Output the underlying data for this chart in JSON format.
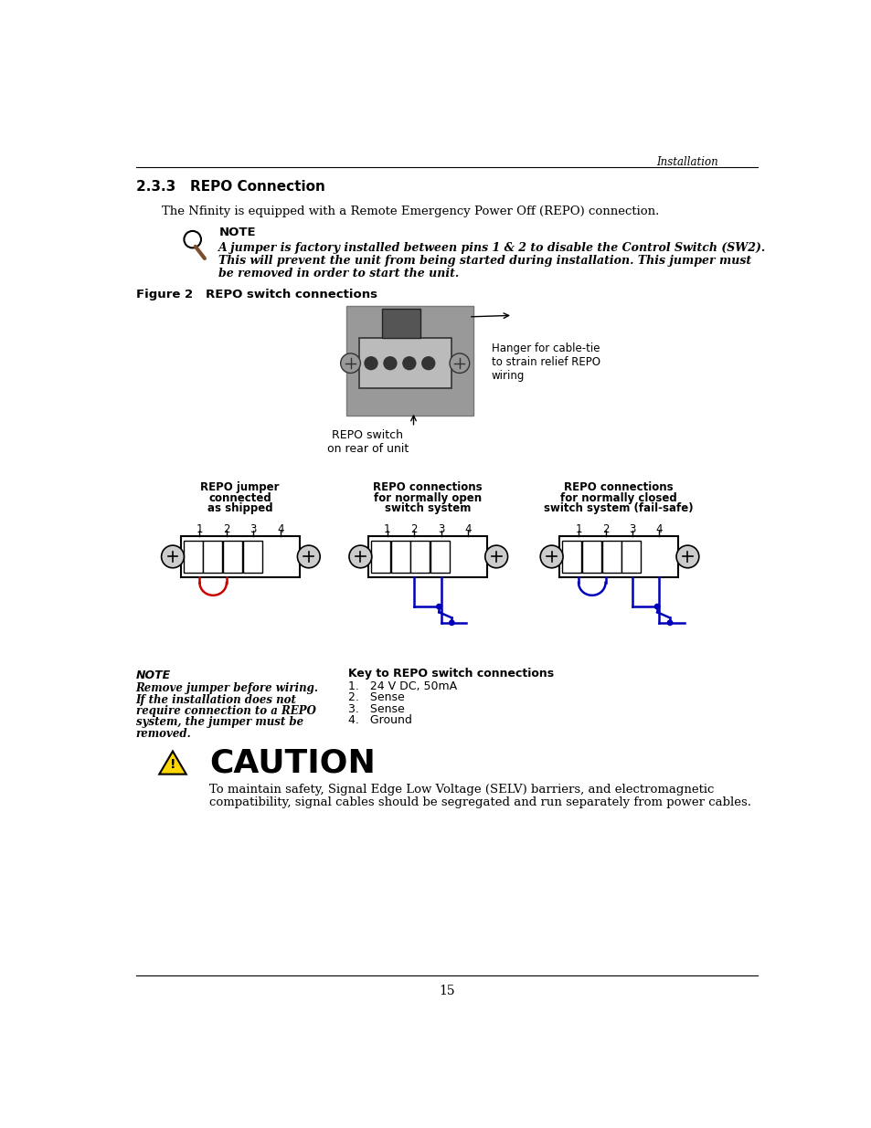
{
  "page_title": "Installation",
  "section_title": "2.3.3   REPO Connection",
  "section_text": "The Nfinity is equipped with a Remote Emergency Power Off (REPO) connection.",
  "note_title": "NOTE",
  "note_text_line1": "A jumper is factory installed between pins 1 & 2 to disable the Control Switch (SW2).",
  "note_text_line2": "This will prevent the unit from being started during installation. This jumper must",
  "note_text_line3": "be removed in order to start the unit.",
  "figure_label": "Figure 2   REPO switch connections",
  "hanger_label": "Hanger for cable-tie\nto strain relief REPO\nwiring",
  "repo_switch_label": "REPO switch\non rear of unit",
  "diagram1_title_lines": [
    "REPO jumper",
    "connected",
    "as shipped"
  ],
  "diagram2_title_lines": [
    "REPO connections",
    "for normally open",
    "switch system"
  ],
  "diagram3_title_lines": [
    "REPO connections",
    "for normally closed",
    "switch system (fail-safe)"
  ],
  "note2_title": "NOTE",
  "note2_lines": [
    "Remove jumper before wiring.",
    "If the installation does not",
    "require connection to a REPO",
    "system, the jumper must be",
    "removed."
  ],
  "key_title": "Key to REPO switch connections",
  "key_items": [
    "1.   24 V DC, 50mA",
    "2.   Sense",
    "3.   Sense",
    "4.   Ground"
  ],
  "caution_title": "CAUTION",
  "caution_line1": "To maintain safety, Signal Edge Low Voltage (SELV) barriers, and electromagnetic",
  "caution_line2": "compatibility, signal cables should be segregated and run separately from power cables.",
  "page_number": "15",
  "bg_color": "#ffffff",
  "blue_color": "#0000bb",
  "red_color": "#cc0000",
  "tri_color": "#FFD700"
}
